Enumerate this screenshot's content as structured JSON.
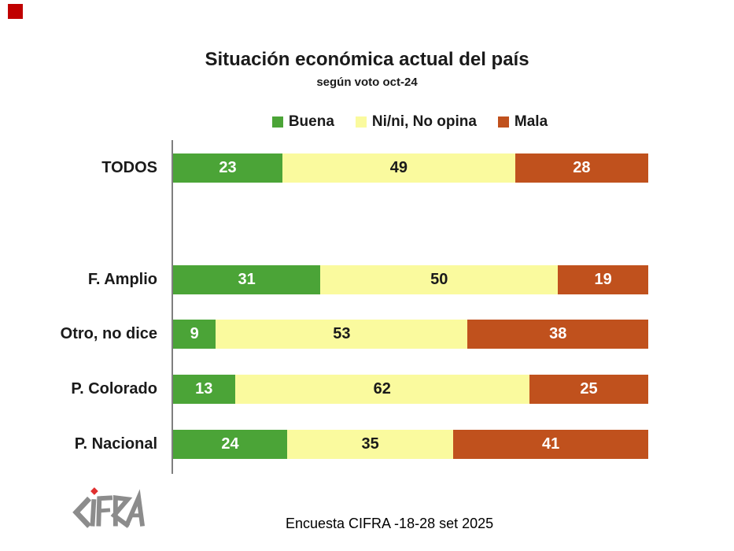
{
  "page": {
    "background": "#ffffff",
    "corner_marker_color": "#c00000"
  },
  "chart_data": {
    "type": "bar",
    "orientation": "horizontal",
    "stacked": true,
    "title": "Situación económica actual del país",
    "subtitle": "según voto oct-24",
    "xlabel": "",
    "ylabel": "",
    "xlim": [
      0,
      100
    ],
    "grid": false,
    "legend_position": "top",
    "value_labels": "inside-center",
    "categories": [
      "TODOS",
      "F. Amplio",
      "Otro, no dice",
      "P. Colorado",
      "P. Nacional"
    ],
    "series": [
      {
        "name": "Buena",
        "color": "#4ba437",
        "label_color": "#ffffff",
        "values": [
          23,
          31,
          9,
          13,
          24
        ]
      },
      {
        "name": "Ni/ni, No opina",
        "color": "#fafa9e",
        "label_color": "#1a1a1a",
        "values": [
          49,
          50,
          53,
          62,
          35
        ]
      },
      {
        "name": "Mala",
        "color": "#c0511d",
        "label_color": "#ffffff",
        "values": [
          28,
          19,
          38,
          25,
          41
        ]
      }
    ],
    "axis_color": "#7f7f7f"
  },
  "footer": {
    "source": "Encuesta CIFRA -18-28 set 2025"
  },
  "logo": {
    "name": "CIFRA",
    "letter_color": "#8c8c8c",
    "dot_color": "#e03030"
  }
}
